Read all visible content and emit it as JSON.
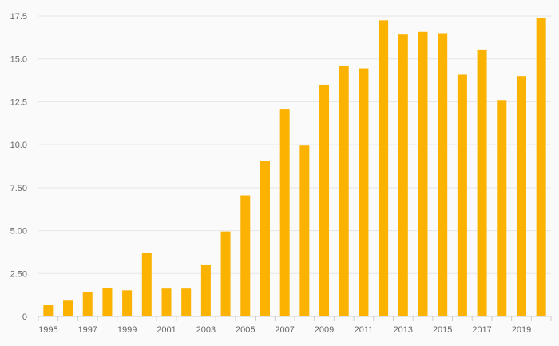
{
  "colors": {
    "bar": "#fbb200",
    "grid": "#e6e6e6",
    "axis": "#cccccc",
    "background": "#fafafa"
  },
  "chart_data": {
    "type": "bar",
    "title": "",
    "xlabel": "",
    "ylabel": "",
    "ylim": [
      0,
      17.5
    ],
    "y_ticks": [
      "0",
      "2.50",
      "5.00",
      "7.50",
      "10.0",
      "12.5",
      "15.0",
      "17.5"
    ],
    "y_tick_values": [
      0,
      2.5,
      5,
      7.5,
      10,
      12.5,
      15,
      17.5
    ],
    "categories": [
      "1995",
      "1996",
      "1997",
      "1998",
      "1999",
      "2000",
      "2001",
      "2002",
      "2003",
      "2004",
      "2005",
      "2006",
      "2007",
      "2008",
      "2009",
      "2010",
      "2011",
      "2012",
      "2013",
      "2014",
      "2015",
      "2016",
      "2017",
      "2018",
      "2019",
      "2020"
    ],
    "x_tick_labels": [
      "1995",
      "1997",
      "1999",
      "2001",
      "2003",
      "2005",
      "2007",
      "2009",
      "2011",
      "2013",
      "2015",
      "2017",
      "2019"
    ],
    "values": [
      0.65,
      0.92,
      1.4,
      1.67,
      1.52,
      3.72,
      1.62,
      1.62,
      2.98,
      4.95,
      7.05,
      9.05,
      12.05,
      9.95,
      13.5,
      14.6,
      14.45,
      17.25,
      16.42,
      16.58,
      16.5,
      14.08,
      15.55,
      12.6,
      14.0,
      17.4
    ]
  }
}
